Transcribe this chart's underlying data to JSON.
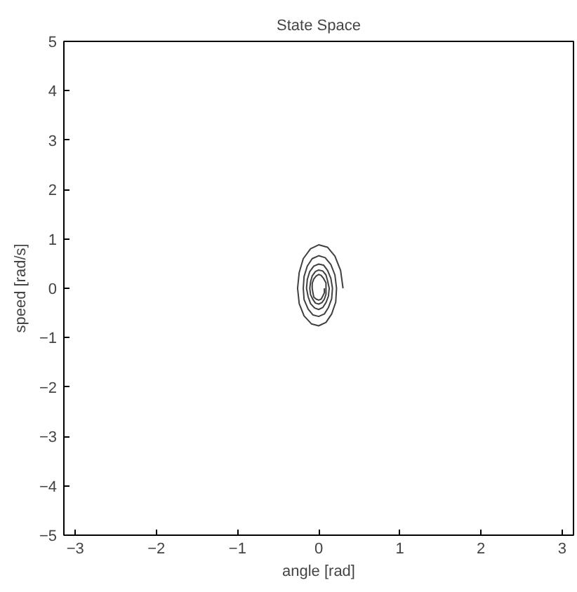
{
  "chart_data": {
    "type": "line",
    "title": "State Space",
    "xlabel": "angle [rad]",
    "ylabel": "speed [rad/s]",
    "x": [
      0.3,
      0.27,
      0.2,
      0.11,
      0,
      -0.1,
      -0.19,
      -0.24,
      -0.26,
      -0.24,
      -0.18,
      -0.09,
      0,
      0.09,
      0.16,
      0.21,
      0.22,
      0.2,
      0.15,
      0.08,
      0,
      -0.08,
      -0.14,
      -0.18,
      -0.19,
      -0.18,
      -0.13,
      -0.07,
      0,
      0.07,
      0.12,
      0.16,
      0.17,
      0.15,
      0.11,
      0.06,
      0,
      -0.06,
      -0.11,
      -0.14,
      -0.15,
      -0.13,
      -0.1,
      -0.05,
      0,
      0.05,
      0.09,
      0.12,
      0.13,
      0.11,
      0.09,
      0.05,
      0,
      -0.04,
      -0.08,
      -0.1,
      -0.11,
      -0.1,
      -0.07,
      -0.04,
      0,
      0.04,
      0.07,
      0.09,
      0.09,
      0.09,
      0.06,
      0.03,
      0,
      -0.03,
      -0.06,
      -0.08,
      -0.08,
      -0.07,
      -0.06,
      -0.03,
      0,
      0.03,
      0.05,
      0.07,
      0.07
    ],
    "series": [
      {
        "color": "#404040",
        "values": [
          0,
          0.36,
          0.65,
          0.83,
          0.88,
          0.8,
          0.6,
          0.32,
          0,
          -0.31,
          -0.56,
          -0.72,
          -0.76,
          -0.69,
          -0.52,
          -0.28,
          0,
          0.27,
          0.48,
          0.62,
          0.66,
          0.6,
          0.45,
          0.24,
          0,
          -0.23,
          -0.42,
          -0.54,
          -0.57,
          -0.52,
          -0.39,
          -0.21,
          0,
          0.2,
          0.36,
          0.47,
          0.49,
          0.45,
          0.34,
          0.18,
          0,
          -0.17,
          -0.31,
          -0.4,
          -0.43,
          -0.39,
          -0.29,
          -0.16,
          0,
          0.15,
          0.27,
          0.35,
          0.37,
          0.34,
          0.25,
          0.13,
          0,
          -0.13,
          -0.23,
          -0.3,
          -0.32,
          -0.29,
          -0.22,
          -0.12,
          0,
          0.11,
          0.2,
          0.26,
          0.28,
          0.25,
          0.19,
          0.1,
          0,
          -0.1,
          -0.18,
          -0.22,
          -0.24,
          -0.22,
          -0.16,
          -0.09,
          0
        ]
      }
    ],
    "xlim": [
      -3.14,
      3.14
    ],
    "ylim": [
      -5,
      5
    ],
    "xticks": [
      -3,
      -2,
      -1,
      0,
      1,
      2,
      3
    ],
    "yticks": [
      -5,
      -4,
      -3,
      -2,
      -1,
      0,
      1,
      2,
      3,
      4,
      5
    ],
    "grid": false,
    "marker": "none",
    "line_style": "solid"
  }
}
